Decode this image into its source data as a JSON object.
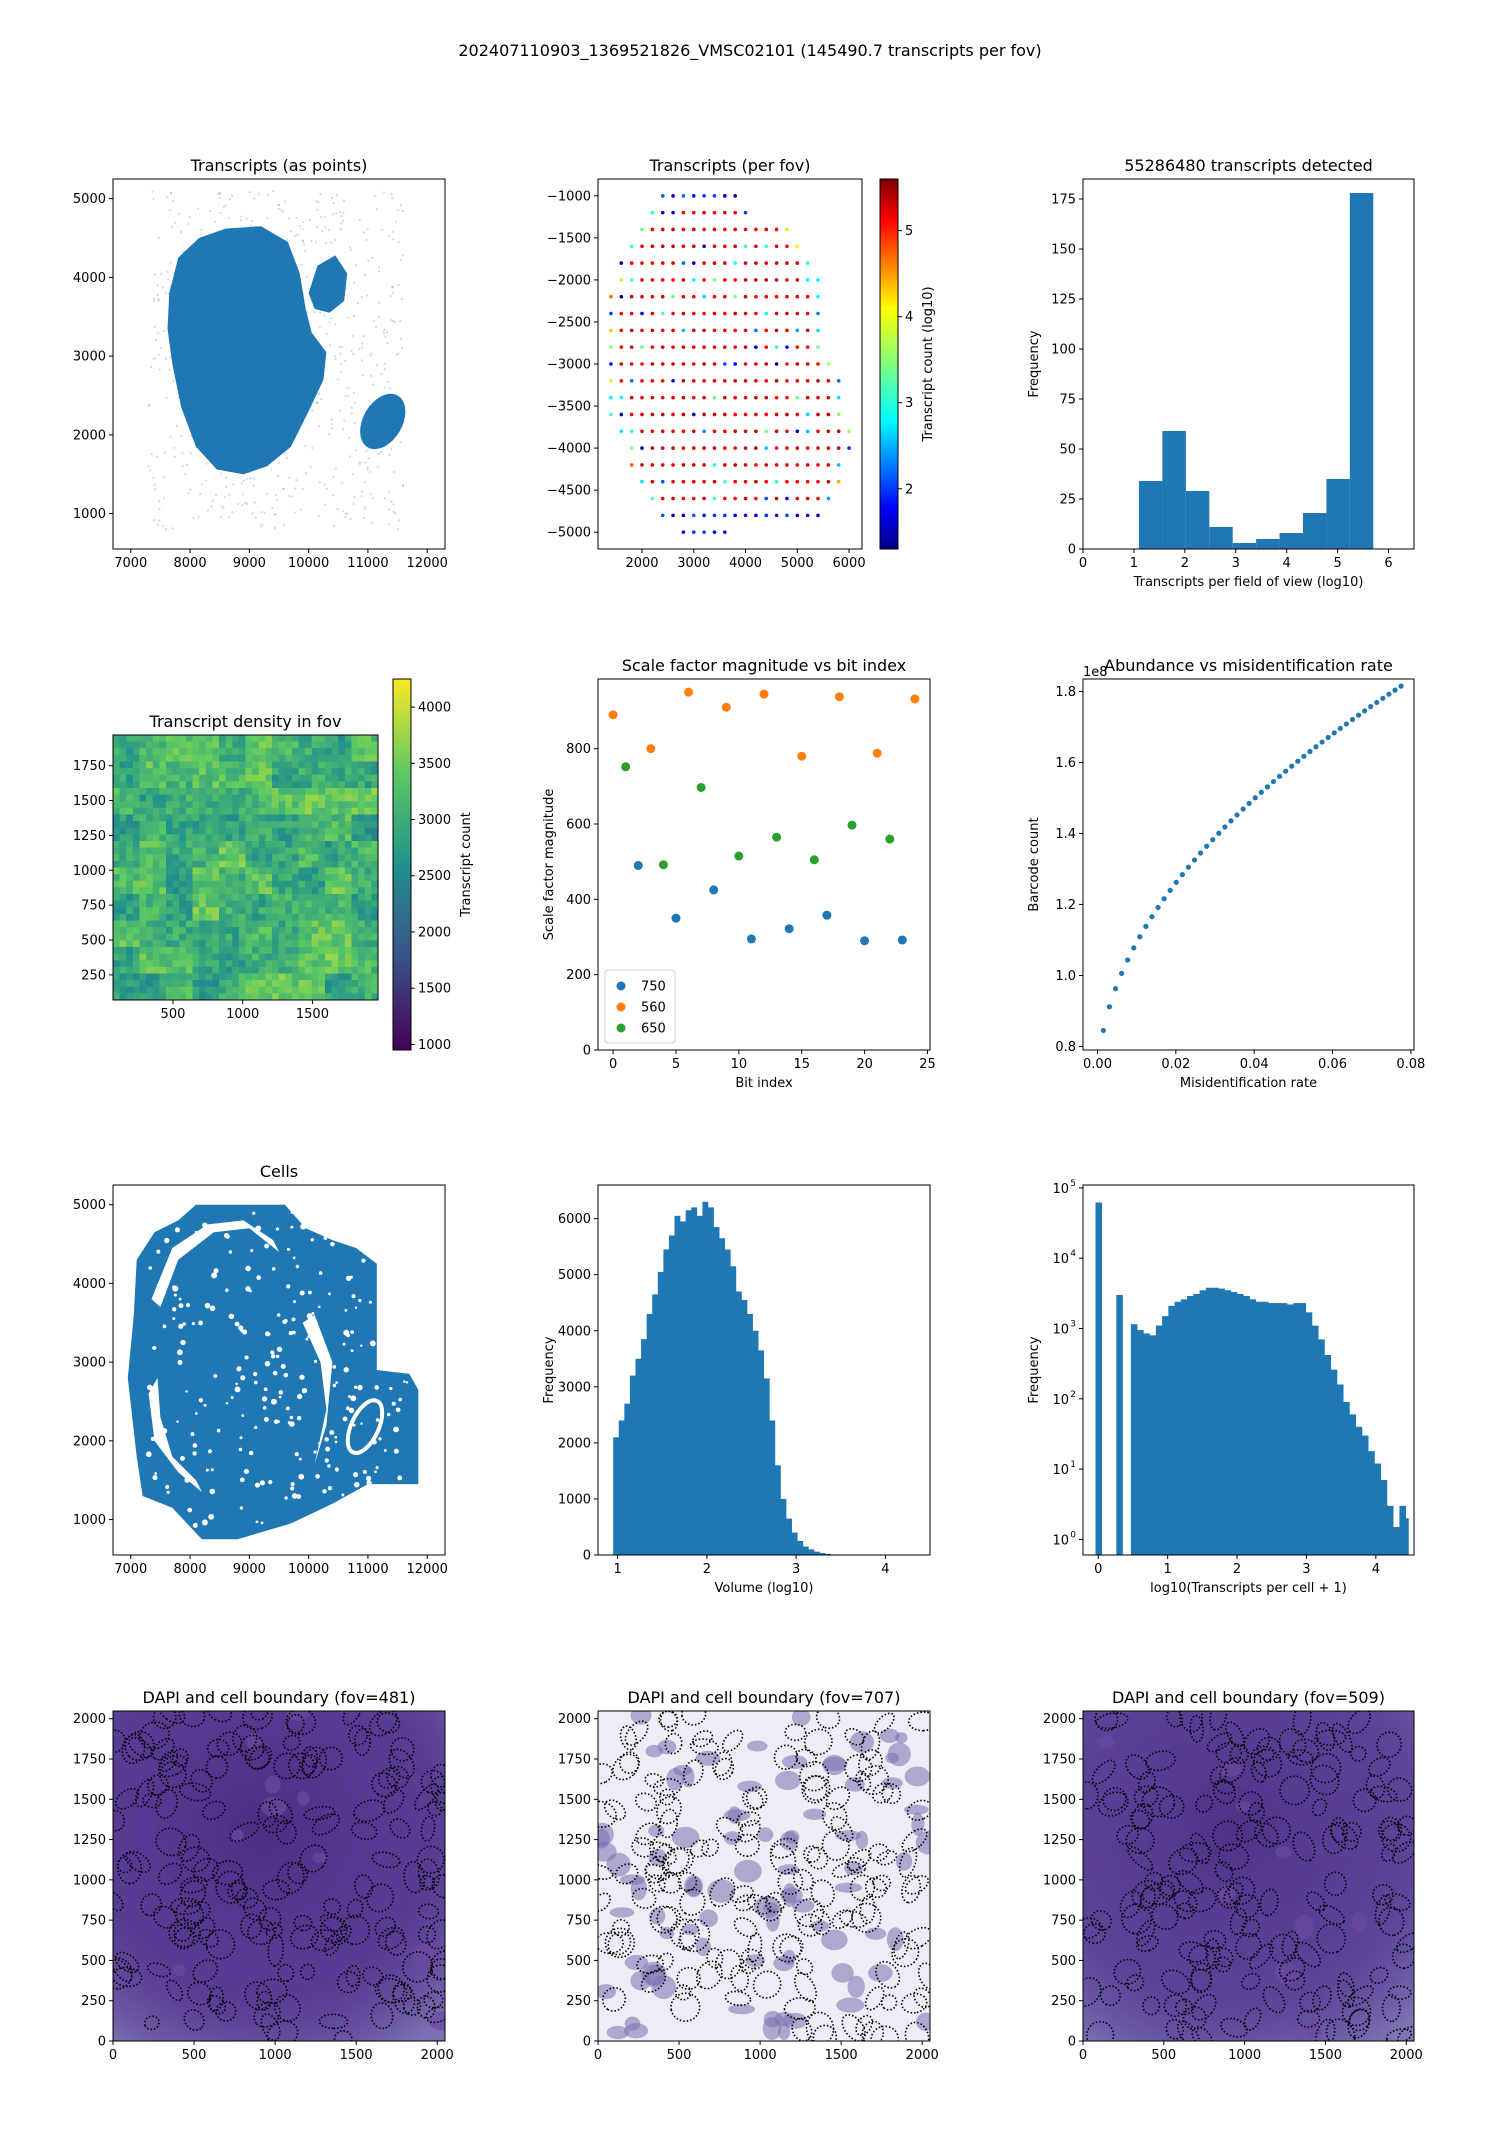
{
  "suptitle": "202407110903_1369521826_VMSC02101 (145490.7 transcripts per fov)",
  "chart_data": [
    {
      "id": "transcripts_points",
      "type": "scatter",
      "title": "Transcripts (as points)",
      "xlim": [
        6700,
        12300
      ],
      "ylim": [
        550,
        5250
      ],
      "xticks": [
        7000,
        8000,
        9000,
        10000,
        11000,
        12000
      ],
      "yticks": [
        1000,
        2000,
        3000,
        4000,
        5000
      ],
      "color": "#1f77b4",
      "main_region_outline": [
        [
          7650,
          3800
        ],
        [
          7800,
          4250
        ],
        [
          8150,
          4500
        ],
        [
          8600,
          4620
        ],
        [
          9200,
          4650
        ],
        [
          9650,
          4450
        ],
        [
          9850,
          4050
        ],
        [
          9950,
          3600
        ],
        [
          10050,
          3300
        ],
        [
          10300,
          3050
        ],
        [
          10250,
          2700
        ],
        [
          10000,
          2300
        ],
        [
          9700,
          1850
        ],
        [
          9300,
          1600
        ],
        [
          8900,
          1500
        ],
        [
          8450,
          1560
        ],
        [
          8100,
          1850
        ],
        [
          7850,
          2350
        ],
        [
          7700,
          2900
        ],
        [
          7620,
          3350
        ]
      ],
      "side_lobe_outline": [
        [
          10000,
          3800
        ],
        [
          10150,
          4150
        ],
        [
          10450,
          4280
        ],
        [
          10650,
          4050
        ],
        [
          10600,
          3700
        ],
        [
          10350,
          3550
        ],
        [
          10100,
          3600
        ]
      ],
      "small_ellipse": {
        "cx": 11250,
        "cy": 2170,
        "rx": 330,
        "ry": 380
      }
    },
    {
      "id": "transcripts_per_fov",
      "type": "scatter",
      "title": "Transcripts (per fov)",
      "colorbar_label": "Transcript count (log10)",
      "colormap": "jet",
      "clim": [
        1.3,
        5.6
      ],
      "colorbar_ticks": [
        2,
        3,
        4,
        5
      ],
      "xlim": [
        1150,
        6250
      ],
      "ylim": [
        -5200,
        -800
      ],
      "xticks": [
        2000,
        3000,
        4000,
        5000,
        6000
      ],
      "yticks": [
        -1000,
        -1500,
        -2000,
        -2500,
        -3000,
        -3500,
        -4000,
        -4500,
        -5000
      ],
      "grid_step": 200,
      "fov_rows": [
        {
          "y": -1000,
          "x_range": [
            2400,
            3800
          ]
        },
        {
          "y": -1200,
          "x_range": [
            2200,
            4000
          ]
        },
        {
          "y": -1400,
          "x_range": [
            2000,
            4800
          ]
        },
        {
          "y": -1600,
          "x_range": [
            1800,
            5000
          ]
        },
        {
          "y": -1800,
          "x_range": [
            1600,
            5200
          ]
        },
        {
          "y": -2000,
          "x_range": [
            1600,
            5400
          ]
        },
        {
          "y": -2200,
          "x_range": [
            1400,
            5400
          ]
        },
        {
          "y": -2400,
          "x_range": [
            1400,
            5400
          ]
        },
        {
          "y": -2600,
          "x_range": [
            1400,
            5400
          ]
        },
        {
          "y": -2800,
          "x_range": [
            1400,
            5400
          ]
        },
        {
          "y": -3000,
          "x_range": [
            1400,
            5600
          ]
        },
        {
          "y": -3200,
          "x_range": [
            1400,
            5800
          ]
        },
        {
          "y": -3400,
          "x_range": [
            1400,
            5800
          ]
        },
        {
          "y": -3600,
          "x_range": [
            1400,
            5800
          ]
        },
        {
          "y": -3800,
          "x_range": [
            1600,
            6000
          ]
        },
        {
          "y": -4000,
          "x_range": [
            1800,
            6000
          ]
        },
        {
          "y": -4200,
          "x_range": [
            1800,
            5800
          ]
        },
        {
          "y": -4400,
          "x_range": [
            2000,
            5800
          ]
        },
        {
          "y": -4600,
          "x_range": [
            2200,
            5600
          ]
        },
        {
          "y": -4800,
          "x_range": [
            2400,
            5400
          ]
        },
        {
          "y": -5000,
          "x_range": [
            2800,
            3600
          ]
        }
      ]
    },
    {
      "id": "transcripts_hist",
      "type": "bar",
      "title": "55286480 transcripts detected",
      "xlabel": "Transcripts per field of view (log10)",
      "ylabel": "Frequency",
      "xlim": [
        0,
        6.5
      ],
      "ylim": [
        0,
        185
      ],
      "xticks": [
        0,
        1,
        2,
        3,
        4,
        5,
        6
      ],
      "yticks": [
        0,
        25,
        50,
        75,
        100,
        125,
        150,
        175
      ],
      "bin_edges": [
        1.1,
        1.56,
        2.02,
        2.48,
        2.94,
        3.4,
        3.86,
        4.32,
        4.78,
        5.24,
        5.7
      ],
      "counts": [
        34,
        59,
        29,
        11,
        3,
        5,
        8,
        18,
        35,
        178
      ]
    },
    {
      "id": "density_in_fov",
      "type": "heatmap",
      "title": "Transcript density in fov",
      "colorbar_label": "Transcript count",
      "colormap": "viridis",
      "clim": [
        950,
        4250
      ],
      "colorbar_ticks": [
        1000,
        1500,
        2000,
        2500,
        3000,
        3500,
        4000
      ],
      "xlim": [
        70,
        1970
      ],
      "ylim": [
        70,
        1970
      ],
      "xticks": [
        500,
        1000,
        1500
      ],
      "yticks": [
        250,
        500,
        750,
        1000,
        1250,
        1500,
        1750
      ],
      "grid_cells": 40,
      "value_range": [
        2400,
        3800
      ]
    },
    {
      "id": "scale_factor",
      "type": "scatter",
      "title": "Scale factor magnitude vs bit index",
      "xlabel": "Bit index",
      "ylabel": "Scale factor magnitude",
      "xlim": [
        -1.2,
        25.2
      ],
      "ylim": [
        0,
        985
      ],
      "xticks": [
        0,
        5,
        10,
        15,
        20,
        25
      ],
      "yticks": [
        0,
        200,
        400,
        600,
        800
      ],
      "legend_position": "lower-left",
      "series": [
        {
          "name": "750",
          "color": "#1f77b4",
          "x": [
            2,
            5,
            8,
            11,
            14,
            17,
            20,
            23
          ],
          "y": [
            490,
            350,
            425,
            295,
            322,
            358,
            290,
            292
          ]
        },
        {
          "name": "560",
          "color": "#ff7f0e",
          "x": [
            0,
            3,
            6,
            9,
            12,
            15,
            18,
            21,
            24
          ],
          "y": [
            890,
            800,
            950,
            910,
            945,
            780,
            938,
            788,
            932
          ]
        },
        {
          "name": "650",
          "color": "#2ca02c",
          "x": [
            1,
            4,
            7,
            10,
            13,
            16,
            19,
            22
          ],
          "y": [
            752,
            492,
            697,
            515,
            565,
            505,
            597,
            560
          ]
        }
      ]
    },
    {
      "id": "abundance_misid",
      "type": "scatter",
      "title": "Abundance vs misidentification rate",
      "xlabel": "Misidentification rate",
      "ylabel": "Barcode count",
      "offset_label": "1e8",
      "xlim": [
        -0.0037,
        0.0808
      ],
      "ylim": [
        0.79,
        1.835
      ],
      "xticks": [
        0.0,
        0.02,
        0.04,
        0.06,
        0.08
      ],
      "xtick_labels": [
        "0.00",
        "0.02",
        "0.04",
        "0.06",
        "0.08"
      ],
      "yticks": [
        0.8,
        1.0,
        1.2,
        1.4,
        1.6,
        1.8
      ],
      "color": "#1f77b4",
      "x_start": 0.0015,
      "x_end": 0.0775,
      "points": 50,
      "curve": {
        "y_at_start": 0.845,
        "y_at_end": 1.815
      }
    },
    {
      "id": "cells",
      "type": "scatter",
      "title": "Cells",
      "xlim": [
        6700,
        12300
      ],
      "ylim": [
        550,
        5250
      ],
      "xticks": [
        7000,
        8000,
        9000,
        10000,
        11000,
        12000
      ],
      "yticks": [
        1000,
        2000,
        3000,
        4000,
        5000
      ],
      "color": "#1f77b4",
      "tissue_outline": [
        [
          7100,
          4300
        ],
        [
          7400,
          4650
        ],
        [
          7800,
          4800
        ],
        [
          8100,
          5000
        ],
        [
          9600,
          5000
        ],
        [
          9950,
          4700
        ],
        [
          10400,
          4550
        ],
        [
          10800,
          4450
        ],
        [
          11150,
          4250
        ],
        [
          11150,
          2900
        ],
        [
          11700,
          2850
        ],
        [
          11850,
          2650
        ],
        [
          11850,
          1450
        ],
        [
          11000,
          1450
        ],
        [
          10400,
          1200
        ],
        [
          9700,
          950
        ],
        [
          8800,
          750
        ],
        [
          8200,
          750
        ],
        [
          7700,
          1150
        ],
        [
          7200,
          1300
        ],
        [
          7100,
          1800
        ],
        [
          6950,
          2800
        ],
        [
          7050,
          3600
        ]
      ],
      "gap_bands": [
        [
          [
            7500,
            3700
          ],
          [
            7800,
            4300
          ],
          [
            8400,
            4650
          ],
          [
            9000,
            4700
          ],
          [
            9500,
            4400
          ],
          [
            9400,
            4550
          ],
          [
            8900,
            4800
          ],
          [
            8300,
            4750
          ],
          [
            7700,
            4450
          ],
          [
            7350,
            3800
          ]
        ],
        [
          [
            7300,
            2600
          ],
          [
            7400,
            2000
          ],
          [
            7800,
            1600
          ],
          [
            8200,
            1350
          ],
          [
            8100,
            1500
          ],
          [
            7700,
            1800
          ],
          [
            7500,
            2300
          ],
          [
            7450,
            2800
          ]
        ],
        [
          [
            9900,
            3500
          ],
          [
            10200,
            3000
          ],
          [
            10300,
            2400
          ],
          [
            10100,
            1700
          ],
          [
            10300,
            2200
          ],
          [
            10400,
            3000
          ],
          [
            10100,
            3600
          ]
        ]
      ],
      "small_ellipse": {
        "cx": 10950,
        "cy": 2180,
        "rx": 230,
        "ry": 360
      }
    },
    {
      "id": "volume_hist",
      "type": "bar",
      "title": "",
      "xlabel": "Volume (log10)",
      "ylabel": "Frequency",
      "xlim": [
        0.78,
        4.5
      ],
      "ylim": [
        0,
        6600
      ],
      "xticks": [
        1,
        2,
        3,
        4
      ],
      "yticks": [
        0,
        1000,
        2000,
        3000,
        4000,
        5000,
        6000
      ],
      "bin_start": 0.95,
      "bin_width": 0.0625,
      "counts": [
        2100,
        2400,
        2700,
        3200,
        3500,
        3850,
        4300,
        4650,
        5050,
        5450,
        5700,
        6050,
        5950,
        6150,
        6200,
        6050,
        6300,
        6200,
        5850,
        5650,
        5450,
        5150,
        4700,
        4550,
        4300,
        4000,
        3650,
        3150,
        2400,
        1600,
        1000,
        650,
        400,
        250,
        150,
        100,
        60,
        35,
        20,
        10,
        5
      ]
    },
    {
      "id": "transcripts_per_cell_hist",
      "type": "bar",
      "title": "",
      "xlabel": "log10(Transcripts per cell + 1)",
      "ylabel": "Frequency",
      "y_scale": "log",
      "xlim": [
        -0.22,
        4.55
      ],
      "ylim": [
        0.6,
        110000
      ],
      "xticks": [
        0,
        1,
        2,
        3,
        4
      ],
      "ytick_exponents": [
        0,
        1,
        2,
        3,
        4,
        5
      ],
      "bars": [
        [
          -0.04,
          0.05,
          62000
        ],
        [
          0.26,
          0.35,
          3000
        ],
        [
          0.47,
          0.56,
          1150
        ],
        [
          0.56,
          0.65,
          950
        ],
        [
          0.65,
          0.74,
          850
        ],
        [
          0.74,
          0.83,
          800
        ],
        [
          0.83,
          0.92,
          1100
        ],
        [
          0.92,
          1.01,
          1500
        ],
        [
          1.01,
          1.1,
          2100
        ],
        [
          1.1,
          1.19,
          2400
        ],
        [
          1.19,
          1.28,
          2600
        ],
        [
          1.28,
          1.37,
          2900
        ],
        [
          1.37,
          1.46,
          3100
        ],
        [
          1.46,
          1.55,
          3500
        ],
        [
          1.55,
          1.64,
          3800
        ],
        [
          1.64,
          1.73,
          3800
        ],
        [
          1.73,
          1.82,
          3700
        ],
        [
          1.82,
          1.91,
          3500
        ],
        [
          1.91,
          2.0,
          3300
        ],
        [
          2.0,
          2.09,
          3100
        ],
        [
          2.09,
          2.18,
          2900
        ],
        [
          2.18,
          2.27,
          2600
        ],
        [
          2.27,
          2.36,
          2400
        ],
        [
          2.36,
          2.45,
          2400
        ],
        [
          2.45,
          2.54,
          2300
        ],
        [
          2.54,
          2.63,
          2300
        ],
        [
          2.63,
          2.72,
          2300
        ],
        [
          2.72,
          2.81,
          2200
        ],
        [
          2.81,
          2.9,
          2300
        ],
        [
          2.9,
          2.99,
          2300
        ],
        [
          2.99,
          3.08,
          1700
        ],
        [
          3.08,
          3.17,
          1100
        ],
        [
          3.17,
          3.26,
          700
        ],
        [
          3.26,
          3.35,
          420
        ],
        [
          3.35,
          3.44,
          260
        ],
        [
          3.44,
          3.53,
          160
        ],
        [
          3.53,
          3.62,
          90
        ],
        [
          3.62,
          3.71,
          60
        ],
        [
          3.71,
          3.8,
          40
        ],
        [
          3.8,
          3.89,
          30
        ],
        [
          3.89,
          3.98,
          18
        ],
        [
          3.98,
          4.07,
          12
        ],
        [
          4.07,
          4.16,
          7
        ],
        [
          4.16,
          4.25,
          3
        ],
        [
          4.25,
          4.34,
          1.5
        ],
        [
          4.34,
          4.43,
          3
        ],
        [
          4.43,
          4.47,
          2
        ]
      ]
    },
    {
      "id": "dapi_481",
      "type": "heatmap",
      "title": "DAPI and cell boundary (fov=481)",
      "xlim": [
        0,
        2048
      ],
      "ylim": [
        0,
        2048
      ],
      "xticks": [
        0,
        500,
        1000,
        1500,
        2000
      ],
      "yticks": [
        0,
        250,
        500,
        750,
        1000,
        1250,
        1500,
        1750,
        2000
      ],
      "background": "#5a3d94",
      "cell_count": 170,
      "seed": 481
    },
    {
      "id": "dapi_707",
      "type": "heatmap",
      "title": "DAPI and cell boundary (fov=707)",
      "xlim": [
        0,
        2048
      ],
      "ylim": [
        0,
        2048
      ],
      "xticks": [
        0,
        500,
        1000,
        1500,
        2000
      ],
      "yticks": [
        0,
        250,
        500,
        750,
        1000,
        1250,
        1500,
        1750,
        2000
      ],
      "background": "#eeecf4",
      "cell_count": 150,
      "seed": 707
    },
    {
      "id": "dapi_509",
      "type": "heatmap",
      "title": "DAPI and cell boundary (fov=509)",
      "xlim": [
        0,
        2048
      ],
      "ylim": [
        0,
        2048
      ],
      "xticks": [
        0,
        500,
        1000,
        1500,
        2000
      ],
      "yticks": [
        0,
        250,
        500,
        750,
        1000,
        1250,
        1500,
        1750,
        2000
      ],
      "background": "#5d4599",
      "cell_count": 160,
      "seed": 509
    }
  ]
}
